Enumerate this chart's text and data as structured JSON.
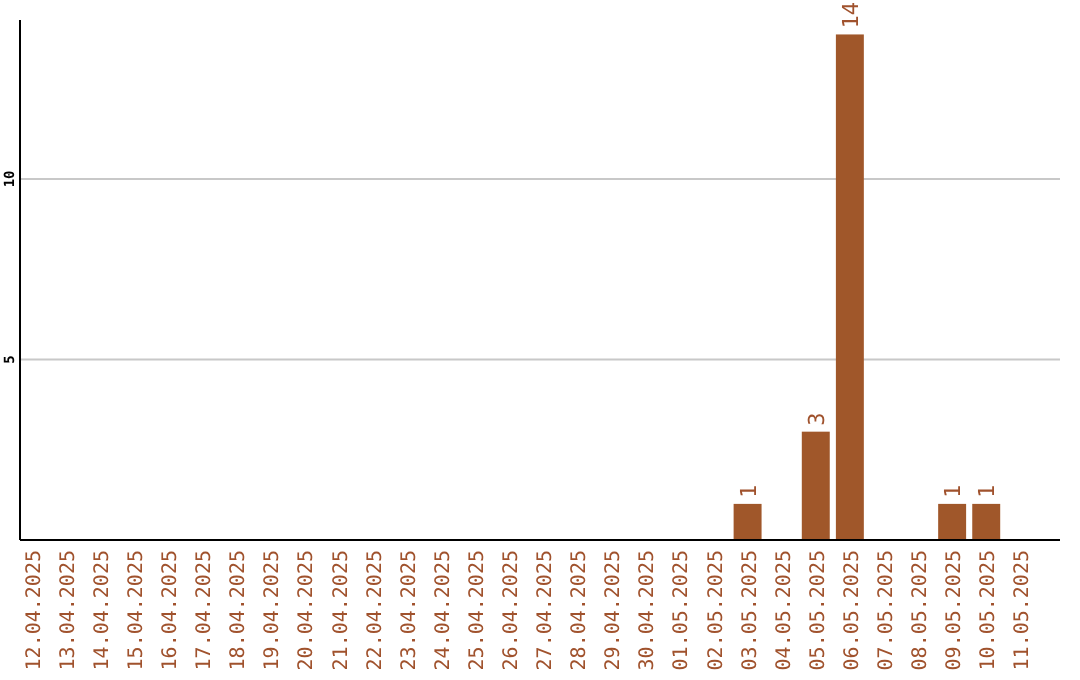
{
  "chart_data": {
    "type": "bar",
    "categories": [
      "12.04.2025",
      "13.04.2025",
      "14.04.2025",
      "15.04.2025",
      "16.04.2025",
      "17.04.2025",
      "18.04.2025",
      "19.04.2025",
      "20.04.2025",
      "21.04.2025",
      "22.04.2025",
      "23.04.2025",
      "24.04.2025",
      "25.04.2025",
      "26.04.2025",
      "27.04.2025",
      "28.04.2025",
      "29.04.2025",
      "30.04.2025",
      "01.05.2025",
      "02.05.2025",
      "03.05.2025",
      "04.05.2025",
      "05.05.2025",
      "06.05.2025",
      "07.05.2025",
      "08.05.2025",
      "09.05.2025",
      "10.05.2025",
      "11.05.2025"
    ],
    "values": [
      0,
      0,
      0,
      0,
      0,
      0,
      0,
      0,
      0,
      0,
      0,
      0,
      0,
      0,
      0,
      0,
      0,
      0,
      0,
      0,
      0,
      1,
      0,
      3,
      14,
      0,
      0,
      1,
      1,
      0
    ],
    "value_labels": [
      null,
      null,
      null,
      null,
      null,
      null,
      null,
      null,
      null,
      null,
      null,
      null,
      null,
      null,
      null,
      null,
      null,
      null,
      null,
      null,
      null,
      "1",
      null,
      "3",
      "14",
      null,
      null,
      "1",
      "1",
      null
    ],
    "color": "#a0572a",
    "ylim": [
      0,
      14.4
    ],
    "yticks": [
      5,
      10
    ],
    "grid": "y"
  }
}
